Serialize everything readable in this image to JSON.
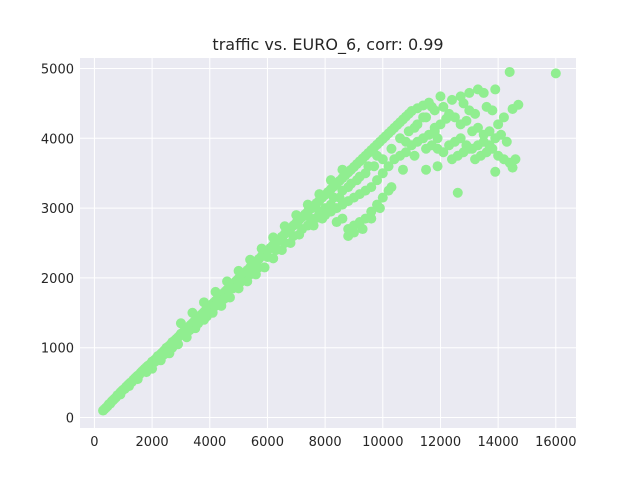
{
  "chart_data": {
    "type": "scatter",
    "title": "traffic vs. EURO_6, corr: 0.99",
    "xlabel": "",
    "ylabel": "",
    "xlim": [
      -500,
      16700
    ],
    "ylim": [
      -150,
      5150
    ],
    "x_ticks": [
      0,
      2000,
      4000,
      6000,
      8000,
      10000,
      12000,
      14000,
      16000
    ],
    "y_ticks": [
      0,
      1000,
      2000,
      3000,
      4000,
      5000
    ],
    "x_tick_labels": [
      "0",
      "2000",
      "4000",
      "6000",
      "8000",
      "10000",
      "12000",
      "14000",
      "16000"
    ],
    "y_tick_labels": [
      "0",
      "1000",
      "2000",
      "3000",
      "4000",
      "5000"
    ],
    "grid": true,
    "point_color": "#90ee90",
    "background_color": "#eaeaf2",
    "points": [
      [
        300,
        100
      ],
      [
        350,
        120
      ],
      [
        400,
        140
      ],
      [
        450,
        160
      ],
      [
        500,
        190
      ],
      [
        550,
        200
      ],
      [
        600,
        230
      ],
      [
        650,
        250
      ],
      [
        700,
        270
      ],
      [
        750,
        290
      ],
      [
        800,
        320
      ],
      [
        850,
        330
      ],
      [
        900,
        360
      ],
      [
        950,
        380
      ],
      [
        1000,
        400
      ],
      [
        1050,
        410
      ],
      [
        1100,
        440
      ],
      [
        1150,
        460
      ],
      [
        1200,
        480
      ],
      [
        1250,
        500
      ],
      [
        1300,
        510
      ],
      [
        1350,
        540
      ],
      [
        1400,
        560
      ],
      [
        1450,
        580
      ],
      [
        1500,
        600
      ],
      [
        1550,
        610
      ],
      [
        1600,
        640
      ],
      [
        1650,
        660
      ],
      [
        1700,
        680
      ],
      [
        1750,
        700
      ],
      [
        1800,
        720
      ],
      [
        1850,
        740
      ],
      [
        1900,
        750
      ],
      [
        1950,
        770
      ],
      [
        2000,
        800
      ],
      [
        2050,
        810
      ],
      [
        2100,
        830
      ],
      [
        2150,
        850
      ],
      [
        2200,
        880
      ],
      [
        2250,
        890
      ],
      [
        2300,
        910
      ],
      [
        2350,
        930
      ],
      [
        2400,
        950
      ],
      [
        2450,
        970
      ],
      [
        2500,
        1000
      ],
      [
        2550,
        1010
      ],
      [
        2600,
        1030
      ],
      [
        2650,
        1050
      ],
      [
        2700,
        1080
      ],
      [
        2750,
        1090
      ],
      [
        2800,
        1110
      ],
      [
        2850,
        1130
      ],
      [
        2900,
        1150
      ],
      [
        2950,
        1170
      ],
      [
        3000,
        1200
      ],
      [
        3050,
        1210
      ],
      [
        3100,
        1230
      ],
      [
        3150,
        1250
      ],
      [
        3200,
        1270
      ],
      [
        3250,
        1290
      ],
      [
        3300,
        1310
      ],
      [
        3350,
        1330
      ],
      [
        3400,
        1350
      ],
      [
        3450,
        1370
      ],
      [
        3500,
        1390
      ],
      [
        3550,
        1410
      ],
      [
        3600,
        1430
      ],
      [
        3650,
        1450
      ],
      [
        3700,
        1470
      ],
      [
        3750,
        1490
      ],
      [
        3800,
        1510
      ],
      [
        3850,
        1530
      ],
      [
        3900,
        1550
      ],
      [
        3950,
        1570
      ],
      [
        4000,
        1590
      ],
      [
        4050,
        1610
      ],
      [
        4100,
        1630
      ],
      [
        4150,
        1650
      ],
      [
        4200,
        1670
      ],
      [
        4250,
        1690
      ],
      [
        4300,
        1710
      ],
      [
        4350,
        1730
      ],
      [
        4400,
        1750
      ],
      [
        4450,
        1770
      ],
      [
        4500,
        1790
      ],
      [
        4550,
        1810
      ],
      [
        4600,
        1830
      ],
      [
        4650,
        1850
      ],
      [
        4700,
        1870
      ],
      [
        4750,
        1890
      ],
      [
        4800,
        1910
      ],
      [
        4850,
        1930
      ],
      [
        4900,
        1950
      ],
      [
        4950,
        1970
      ],
      [
        5000,
        1990
      ],
      [
        5100,
        2030
      ],
      [
        5200,
        2070
      ],
      [
        5300,
        2110
      ],
      [
        5400,
        2150
      ],
      [
        5500,
        2190
      ],
      [
        5600,
        2230
      ],
      [
        5700,
        2270
      ],
      [
        5800,
        2310
      ],
      [
        5900,
        2350
      ],
      [
        6000,
        2390
      ],
      [
        6100,
        2430
      ],
      [
        6200,
        2470
      ],
      [
        6300,
        2510
      ],
      [
        6400,
        2550
      ],
      [
        6500,
        2590
      ],
      [
        6600,
        2630
      ],
      [
        6700,
        2670
      ],
      [
        6800,
        2710
      ],
      [
        6900,
        2750
      ],
      [
        7000,
        2790
      ],
      [
        7100,
        2830
      ],
      [
        7200,
        2870
      ],
      [
        7300,
        2910
      ],
      [
        7400,
        2950
      ],
      [
        7500,
        2990
      ],
      [
        7600,
        3030
      ],
      [
        7700,
        3070
      ],
      [
        7800,
        3110
      ],
      [
        7900,
        3150
      ],
      [
        8000,
        3190
      ],
      [
        8100,
        3230
      ],
      [
        8200,
        3270
      ],
      [
        8300,
        3310
      ],
      [
        8400,
        3350
      ],
      [
        8500,
        3390
      ],
      [
        8600,
        3430
      ],
      [
        8700,
        3470
      ],
      [
        8800,
        3510
      ],
      [
        8900,
        3550
      ],
      [
        9000,
        3590
      ],
      [
        9100,
        3630
      ],
      [
        9200,
        3670
      ],
      [
        9300,
        3710
      ],
      [
        9400,
        3750
      ],
      [
        9500,
        3790
      ],
      [
        9600,
        3830
      ],
      [
        9700,
        3870
      ],
      [
        9800,
        3910
      ],
      [
        9900,
        3950
      ],
      [
        10000,
        3990
      ],
      [
        10100,
        4030
      ],
      [
        10200,
        4070
      ],
      [
        10300,
        4110
      ],
      [
        10400,
        4150
      ],
      [
        10500,
        4190
      ],
      [
        10600,
        4230
      ],
      [
        10700,
        4270
      ],
      [
        10800,
        4310
      ],
      [
        10900,
        4350
      ],
      [
        11000,
        4390
      ],
      [
        11200,
        4430
      ],
      [
        11400,
        4470
      ],
      [
        11600,
        4510
      ],
      [
        2000,
        700
      ],
      [
        2300,
        820
      ],
      [
        2600,
        920
      ],
      [
        2900,
        1050
      ],
      [
        3200,
        1150
      ],
      [
        3500,
        1280
      ],
      [
        3800,
        1400
      ],
      [
        4100,
        1500
      ],
      [
        4400,
        1600
      ],
      [
        4700,
        1720
      ],
      [
        5000,
        1850
      ],
      [
        5300,
        1950
      ],
      [
        5600,
        2050
      ],
      [
        5900,
        2150
      ],
      [
        6200,
        2280
      ],
      [
        6500,
        2400
      ],
      [
        6800,
        2500
      ],
      [
        7100,
        2620
      ],
      [
        7400,
        2750
      ],
      [
        7700,
        2860
      ],
      [
        3000,
        1350
      ],
      [
        3400,
        1500
      ],
      [
        3800,
        1650
      ],
      [
        4200,
        1800
      ],
      [
        4600,
        1950
      ],
      [
        5000,
        2100
      ],
      [
        5400,
        2260
      ],
      [
        5800,
        2420
      ],
      [
        6200,
        2580
      ],
      [
        6600,
        2740
      ],
      [
        7000,
        2900
      ],
      [
        7400,
        3050
      ],
      [
        7800,
        3200
      ],
      [
        8200,
        3400
      ],
      [
        8600,
        3550
      ],
      [
        8000,
        2900
      ],
      [
        8200,
        2950
      ],
      [
        8400,
        3000
      ],
      [
        8600,
        3050
      ],
      [
        8800,
        3100
      ],
      [
        9000,
        3150
      ],
      [
        9200,
        3200
      ],
      [
        9400,
        3250
      ],
      [
        9600,
        3300
      ],
      [
        9800,
        3400
      ],
      [
        10000,
        3500
      ],
      [
        10200,
        3600
      ],
      [
        10400,
        3700
      ],
      [
        10600,
        3750
      ],
      [
        10800,
        3800
      ],
      [
        11000,
        3900
      ],
      [
        11200,
        3950
      ],
      [
        11400,
        4000
      ],
      [
        11600,
        4050
      ],
      [
        11800,
        4100
      ],
      [
        8400,
        2800
      ],
      [
        8600,
        2850
      ],
      [
        8800,
        2700
      ],
      [
        9000,
        2750
      ],
      [
        9200,
        2800
      ],
      [
        9400,
        2850
      ],
      [
        9600,
        2950
      ],
      [
        9800,
        3050
      ],
      [
        10000,
        3150
      ],
      [
        10200,
        3250
      ],
      [
        8800,
        2600
      ],
      [
        9000,
        2650
      ],
      [
        9300,
        2700
      ],
      [
        9600,
        2850
      ],
      [
        9900,
        3000
      ],
      [
        10300,
        3300
      ],
      [
        10700,
        3550
      ],
      [
        11100,
        3750
      ],
      [
        11500,
        3850
      ],
      [
        11900,
        4000
      ],
      [
        7600,
        2750
      ],
      [
        7900,
        2850
      ],
      [
        8200,
        3050
      ],
      [
        8500,
        3150
      ],
      [
        8800,
        3300
      ],
      [
        9100,
        3400
      ],
      [
        9400,
        3500
      ],
      [
        9700,
        3600
      ],
      [
        10000,
        3700
      ],
      [
        10300,
        3850
      ],
      [
        10600,
        4000
      ],
      [
        10900,
        4100
      ],
      [
        11200,
        4200
      ],
      [
        11500,
        4300
      ],
      [
        11800,
        4400
      ],
      [
        12100,
        4450
      ],
      [
        12400,
        4550
      ],
      [
        12700,
        4600
      ],
      [
        13000,
        4650
      ],
      [
        13300,
        4700
      ],
      [
        13500,
        4650
      ],
      [
        13900,
        4700
      ],
      [
        14400,
        4950
      ],
      [
        16000,
        4930
      ],
      [
        14700,
        4480
      ],
      [
        14500,
        4420
      ],
      [
        12200,
        4280
      ],
      [
        11800,
        4150
      ],
      [
        12000,
        4200
      ],
      [
        12300,
        4350
      ],
      [
        11700,
        3900
      ],
      [
        11900,
        3850
      ],
      [
        12100,
        3800
      ],
      [
        11500,
        3550
      ],
      [
        11900,
        3600
      ],
      [
        12600,
        3220
      ],
      [
        12400,
        3700
      ],
      [
        12600,
        3750
      ],
      [
        12800,
        3800
      ],
      [
        13000,
        3850
      ],
      [
        13200,
        3700
      ],
      [
        13400,
        3750
      ],
      [
        13600,
        3800
      ],
      [
        13800,
        3850
      ],
      [
        14000,
        3750
      ],
      [
        14200,
        3700
      ],
      [
        14400,
        3650
      ],
      [
        14600,
        3700
      ],
      [
        14500,
        3580
      ],
      [
        13900,
        3520
      ],
      [
        12500,
        4300
      ],
      [
        12700,
        4200
      ],
      [
        12900,
        4250
      ],
      [
        13100,
        4100
      ],
      [
        13300,
        4150
      ],
      [
        13500,
        4050
      ],
      [
        13700,
        4100
      ],
      [
        13900,
        4000
      ],
      [
        14100,
        4050
      ],
      [
        14300,
        3950
      ],
      [
        12300,
        3900
      ],
      [
        12500,
        3950
      ],
      [
        12700,
        4000
      ],
      [
        12900,
        3900
      ],
      [
        13100,
        3850
      ],
      [
        13300,
        3900
      ],
      [
        13500,
        3950
      ],
      [
        13700,
        3900
      ],
      [
        14000,
        4200
      ],
      [
        14200,
        4300
      ],
      [
        13000,
        4400
      ],
      [
        13200,
        4350
      ],
      [
        12800,
        4500
      ],
      [
        13600,
        4450
      ],
      [
        13800,
        4400
      ],
      [
        12000,
        4600
      ],
      [
        11700,
        4450
      ],
      [
        11400,
        4300
      ],
      [
        11100,
        4150
      ],
      [
        10800,
        3950
      ],
      [
        9800,
        3750
      ],
      [
        9500,
        3600
      ],
      [
        9200,
        3450
      ],
      [
        8900,
        3350
      ],
      [
        8600,
        3250
      ],
      [
        8300,
        3150
      ],
      [
        8000,
        3000
      ],
      [
        7800,
        2950
      ],
      [
        7500,
        2850
      ],
      [
        7200,
        2700
      ],
      [
        6900,
        2600
      ],
      [
        6600,
        2500
      ],
      [
        6300,
        2400
      ],
      [
        6000,
        2300
      ],
      [
        5700,
        2150
      ],
      [
        5400,
        2050
      ],
      [
        5100,
        1950
      ],
      [
        4800,
        1850
      ],
      [
        4500,
        1700
      ],
      [
        4200,
        1600
      ],
      [
        3900,
        1450
      ],
      [
        3600,
        1350
      ],
      [
        3300,
        1250
      ],
      [
        2700,
        1000
      ],
      [
        2400,
        900
      ],
      [
        2100,
        800
      ],
      [
        1800,
        650
      ],
      [
        1500,
        550
      ],
      [
        1200,
        450
      ],
      [
        900,
        330
      ]
    ]
  }
}
